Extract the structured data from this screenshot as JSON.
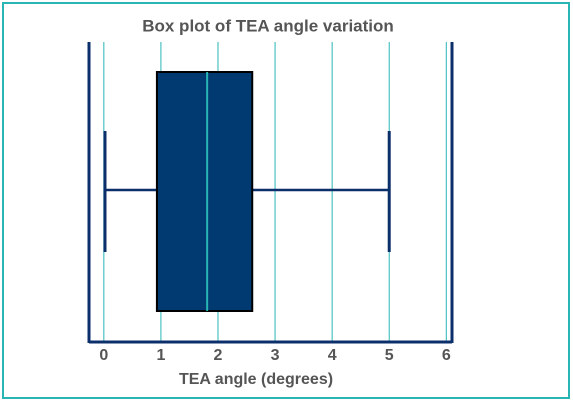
{
  "chart_data": {
    "type": "box",
    "title": "Box plot of TEA angle variation",
    "x_label": "TEA angle (degrees)",
    "xlim": [
      -0.26,
      6.1
    ],
    "xticks": [
      0,
      1,
      2,
      3,
      4,
      5,
      6
    ],
    "grid": true,
    "grid_color": "#2ab5b5",
    "axis_color": "#0b2f6b",
    "color": "#003a70",
    "median_color": "#2ab5b5",
    "boxes": [
      {
        "min": 0.02,
        "q1": 0.93,
        "median": 1.81,
        "q3": 2.6,
        "max": 5.0
      }
    ]
  }
}
